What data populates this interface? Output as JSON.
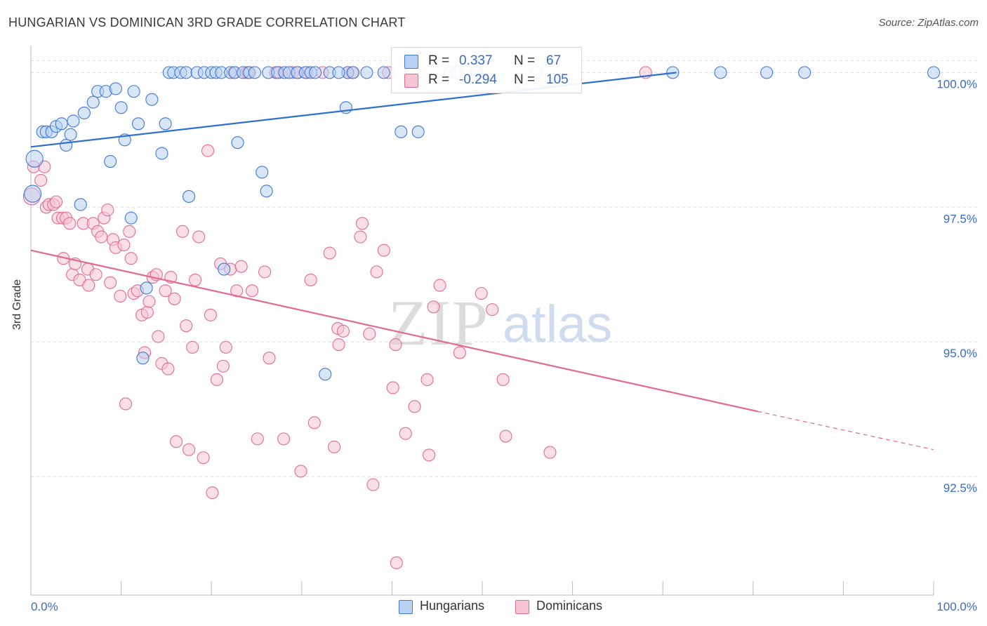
{
  "title": "HUNGARIAN VS DOMINICAN 3RD GRADE CORRELATION CHART",
  "source": "Source: ZipAtlas.com",
  "watermark": {
    "zip": "ZIP",
    "atlas": "atlas"
  },
  "colors": {
    "blue": "#3d78d8",
    "blue_fill": "#b9d1f3",
    "blue_line": "#2f6fcd",
    "pink": "#e06b98",
    "pink_fill": "#f7c4d4",
    "pink_line": "#e36893",
    "axis_label": "#3a6cc0",
    "grid": "#dddddd"
  },
  "legend_top": {
    "rows": [
      {
        "r_label": "R =",
        "r_value": " 0.337",
        "n_label": "N =",
        "n_value": " 67"
      },
      {
        "r_label": "R =",
        "r_value": "-0.294",
        "n_label": "N =",
        "n_value": "105"
      }
    ]
  },
  "legend_bottom": {
    "items": [
      "Hungarians",
      "Dominicans"
    ]
  },
  "chart_data": {
    "type": "scatter",
    "title": "HUNGARIAN VS DOMINICAN 3RD GRADE CORRELATION CHART",
    "xlabel": "",
    "ylabel": "3rd Grade",
    "xlim": [
      0,
      100
    ],
    "ylim": [
      90.3,
      100.5
    ],
    "x_tick_labels": {
      "0": "0.0%",
      "100": "100.0%"
    },
    "y_ticks": [
      {
        "value": 100.0,
        "label": "100.0%"
      },
      {
        "value": 97.5,
        "label": "97.5%"
      },
      {
        "value": 95.0,
        "label": "95.0%"
      },
      {
        "value": 92.5,
        "label": "92.5%"
      }
    ],
    "series": [
      {
        "name": "Hungarians",
        "r": 0.337,
        "n": 67,
        "trend": {
          "x": [
            0,
            71.5
          ],
          "y": [
            98.62,
            100.0
          ]
        },
        "points": [
          [
            0.2,
            97.75
          ],
          [
            0.4,
            98.4
          ],
          [
            1.3,
            98.9
          ],
          [
            1.7,
            98.9
          ],
          [
            2.3,
            98.9
          ],
          [
            2.8,
            99.0
          ],
          [
            3.4,
            99.05
          ],
          [
            3.9,
            98.65
          ],
          [
            4.4,
            98.85
          ],
          [
            4.7,
            99.1
          ],
          [
            5.5,
            97.55
          ],
          [
            5.9,
            99.25
          ],
          [
            6.9,
            99.45
          ],
          [
            7.4,
            99.65
          ],
          [
            8.3,
            99.65
          ],
          [
            8.8,
            98.35
          ],
          [
            9.4,
            99.7
          ],
          [
            10.0,
            99.35
          ],
          [
            10.4,
            98.75
          ],
          [
            11.1,
            97.3
          ],
          [
            11.4,
            99.65
          ],
          [
            11.9,
            99.05
          ],
          [
            12.4,
            94.7
          ],
          [
            12.8,
            96.0
          ],
          [
            13.4,
            99.5
          ],
          [
            14.5,
            98.5
          ],
          [
            14.9,
            99.05
          ],
          [
            15.3,
            100.0
          ],
          [
            15.8,
            100.0
          ],
          [
            16.6,
            100.0
          ],
          [
            17.2,
            100.0
          ],
          [
            17.5,
            97.7
          ],
          [
            18.4,
            100.0
          ],
          [
            19.2,
            100.0
          ],
          [
            20.0,
            100.0
          ],
          [
            20.5,
            100.0
          ],
          [
            21.1,
            100.0
          ],
          [
            21.4,
            96.35
          ],
          [
            22.1,
            100.0
          ],
          [
            22.6,
            100.0
          ],
          [
            22.9,
            98.7
          ],
          [
            23.5,
            100.0
          ],
          [
            24.2,
            100.0
          ],
          [
            24.8,
            100.0
          ],
          [
            25.6,
            98.15
          ],
          [
            26.1,
            97.8
          ],
          [
            26.3,
            100.0
          ],
          [
            27.3,
            100.0
          ],
          [
            28.1,
            100.0
          ],
          [
            28.6,
            100.0
          ],
          [
            29.5,
            100.0
          ],
          [
            30.4,
            100.0
          ],
          [
            31.0,
            100.0
          ],
          [
            31.5,
            100.0
          ],
          [
            32.6,
            94.4
          ],
          [
            35.1,
            100.0
          ],
          [
            35.7,
            100.0
          ],
          [
            33.1,
            100.0
          ],
          [
            34.1,
            100.0
          ],
          [
            34.9,
            99.35
          ],
          [
            37.2,
            100.0
          ],
          [
            39.1,
            100.0
          ],
          [
            42.9,
            98.9
          ],
          [
            46.4,
            100.0
          ],
          [
            47.1,
            100.0
          ],
          [
            49.4,
            100.0
          ],
          [
            54.3,
            99.8
          ],
          [
            56.0,
            100.0
          ],
          [
            71.1,
            100.0
          ],
          [
            76.4,
            100.0
          ],
          [
            81.5,
            100.0
          ],
          [
            85.7,
            100.0
          ],
          [
            100.0,
            100.0
          ],
          [
            41.0,
            98.9
          ]
        ]
      },
      {
        "name": "Dominicans",
        "r": -0.294,
        "n": 105,
        "trend": {
          "x": [
            0,
            80.5
          ],
          "y": [
            96.7,
            93.71
          ]
        },
        "trend_dashed": {
          "x": [
            80.5,
            100
          ],
          "y": [
            93.71,
            93.0
          ]
        },
        "points": [
          [
            0.1,
            97.7
          ],
          [
            0.3,
            98.25
          ],
          [
            1.1,
            98.0
          ],
          [
            1.5,
            98.25
          ],
          [
            1.7,
            97.5
          ],
          [
            2.0,
            97.55
          ],
          [
            2.5,
            97.55
          ],
          [
            2.8,
            97.6
          ],
          [
            3.0,
            97.3
          ],
          [
            3.5,
            97.3
          ],
          [
            3.6,
            96.55
          ],
          [
            3.9,
            97.3
          ],
          [
            4.3,
            97.2
          ],
          [
            4.6,
            96.25
          ],
          [
            4.9,
            96.45
          ],
          [
            5.4,
            96.15
          ],
          [
            5.8,
            97.2
          ],
          [
            6.3,
            96.35
          ],
          [
            6.4,
            96.05
          ],
          [
            6.9,
            97.2
          ],
          [
            7.2,
            96.25
          ],
          [
            7.4,
            97.05
          ],
          [
            7.8,
            96.95
          ],
          [
            8.1,
            97.3
          ],
          [
            8.5,
            97.45
          ],
          [
            8.8,
            96.1
          ],
          [
            9.1,
            96.9
          ],
          [
            9.4,
            96.75
          ],
          [
            9.9,
            95.85
          ],
          [
            10.3,
            96.8
          ],
          [
            10.5,
            93.85
          ],
          [
            10.9,
            97.05
          ],
          [
            11.1,
            96.55
          ],
          [
            11.4,
            95.9
          ],
          [
            11.8,
            95.95
          ],
          [
            12.3,
            95.5
          ],
          [
            12.6,
            94.8
          ],
          [
            12.9,
            95.55
          ],
          [
            13.1,
            95.75
          ],
          [
            13.5,
            96.2
          ],
          [
            13.9,
            96.25
          ],
          [
            14.1,
            95.1
          ],
          [
            14.5,
            94.6
          ],
          [
            14.9,
            95.95
          ],
          [
            15.2,
            94.5
          ],
          [
            15.5,
            96.2
          ],
          [
            15.9,
            95.8
          ],
          [
            16.1,
            93.15
          ],
          [
            16.8,
            97.05
          ],
          [
            17.2,
            95.3
          ],
          [
            17.5,
            93.0
          ],
          [
            17.9,
            94.9
          ],
          [
            18.2,
            96.15
          ],
          [
            18.6,
            96.95
          ],
          [
            19.1,
            92.85
          ],
          [
            19.6,
            98.55
          ],
          [
            19.9,
            95.5
          ],
          [
            20.1,
            92.2
          ],
          [
            20.6,
            94.3
          ],
          [
            21.0,
            96.45
          ],
          [
            21.3,
            94.55
          ],
          [
            21.6,
            94.9
          ],
          [
            22.1,
            96.35
          ],
          [
            22.5,
            100.0
          ],
          [
            22.8,
            95.95
          ],
          [
            23.3,
            96.4
          ],
          [
            23.9,
            100.0
          ],
          [
            24.5,
            95.95
          ],
          [
            24.1,
            100.0
          ],
          [
            25.1,
            93.2
          ],
          [
            25.9,
            96.3
          ],
          [
            26.4,
            94.7
          ],
          [
            27.1,
            100.0
          ],
          [
            27.5,
            100.0
          ],
          [
            28.0,
            93.2
          ],
          [
            29.0,
            100.0
          ],
          [
            29.6,
            100.0
          ],
          [
            29.9,
            92.6
          ],
          [
            30.6,
            100.0
          ],
          [
            31.0,
            96.15
          ],
          [
            31.4,
            93.5
          ],
          [
            32.3,
            100.0
          ],
          [
            33.1,
            96.65
          ],
          [
            33.6,
            93.05
          ],
          [
            34.0,
            95.25
          ],
          [
            34.1,
            94.95
          ],
          [
            34.6,
            95.2
          ],
          [
            35.1,
            100.0
          ],
          [
            35.6,
            100.0
          ],
          [
            36.5,
            96.95
          ],
          [
            36.7,
            97.2
          ],
          [
            37.5,
            95.15
          ],
          [
            37.9,
            92.35
          ],
          [
            38.3,
            96.3
          ],
          [
            39.1,
            96.7
          ],
          [
            39.6,
            100.0
          ],
          [
            40.1,
            94.15
          ],
          [
            40.4,
            94.95
          ],
          [
            40.5,
            90.9
          ],
          [
            41.5,
            93.3
          ],
          [
            42.5,
            93.8
          ],
          [
            43.9,
            94.3
          ],
          [
            44.1,
            92.9
          ],
          [
            44.6,
            95.65
          ],
          [
            45.3,
            96.05
          ],
          [
            47.5,
            94.8
          ],
          [
            49.9,
            95.9
          ],
          [
            51.1,
            95.6
          ],
          [
            52.3,
            94.3
          ],
          [
            52.6,
            93.25
          ],
          [
            57.5,
            92.95
          ],
          [
            68.1,
            100.0
          ]
        ]
      }
    ]
  }
}
